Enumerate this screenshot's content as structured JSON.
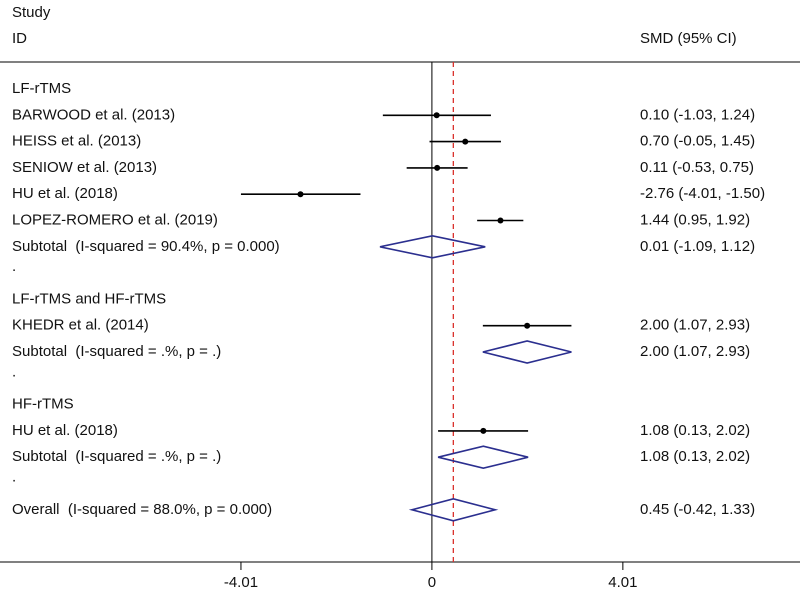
{
  "chart_data": {
    "type": "forest",
    "study_header": "Study",
    "id_header": "ID",
    "effect_header": "SMD (95% CI)",
    "separator": ".",
    "null_value": 0,
    "xlim": [
      -9.07,
      7.73
    ],
    "xticks": [
      -4.01,
      0,
      4.01
    ],
    "marker_color": "#000000",
    "diamond_color": "#2b2f8f",
    "reference_color": "#d9302b",
    "groups": [
      {
        "name": "LF-rTMS",
        "studies": [
          {
            "label": "BARWOOD et al. (2013)",
            "est": 0.1,
            "lo": -1.03,
            "hi": 1.24,
            "ci_label": "0.10 (-1.03, 1.24)"
          },
          {
            "label": "HEISS et al. (2013)",
            "est": 0.7,
            "lo": -0.05,
            "hi": 1.45,
            "ci_label": "0.70 (-0.05, 1.45)"
          },
          {
            "label": "SENIOW et al. (2013)",
            "est": 0.11,
            "lo": -0.53,
            "hi": 0.75,
            "ci_label": "0.11 (-0.53, 0.75)"
          },
          {
            "label": "HU et al. (2018)",
            "est": -2.76,
            "lo": -4.01,
            "hi": -1.5,
            "ci_label": "-2.76 (-4.01, -1.50)"
          },
          {
            "label": "LOPEZ-ROMERO et al. (2019)",
            "est": 1.44,
            "lo": 0.95,
            "hi": 1.92,
            "ci_label": "1.44 (0.95, 1.92)"
          }
        ],
        "subtotal": {
          "label": "Subtotal  (I-squared = 90.4%, p = 0.000)",
          "est": 0.01,
          "lo": -1.09,
          "hi": 1.12,
          "ci_label": "0.01 (-1.09, 1.12)"
        }
      },
      {
        "name": "LF-rTMS and HF-rTMS",
        "studies": [
          {
            "label": "KHEDR et al. (2014)",
            "est": 2.0,
            "lo": 1.07,
            "hi": 2.93,
            "ci_label": "2.00 (1.07, 2.93)"
          }
        ],
        "subtotal": {
          "label": "Subtotal  (I-squared = .%, p = .)",
          "est": 2.0,
          "lo": 1.07,
          "hi": 2.93,
          "ci_label": "2.00 (1.07, 2.93)"
        }
      },
      {
        "name": "HF-rTMS",
        "studies": [
          {
            "label": "HU et al. (2018)",
            "est": 1.08,
            "lo": 0.13,
            "hi": 2.02,
            "ci_label": "1.08 (0.13, 2.02)"
          }
        ],
        "subtotal": {
          "label": "Subtotal  (I-squared = .%, p = .)",
          "est": 1.08,
          "lo": 0.13,
          "hi": 2.02,
          "ci_label": "1.08 (0.13, 2.02)"
        }
      }
    ],
    "overall": {
      "label": "Overall  (I-squared = 88.0%, p = 0.000)",
      "est": 0.45,
      "lo": -0.42,
      "hi": 1.33,
      "ci_label": "0.45 (-0.42, 1.33)"
    }
  }
}
